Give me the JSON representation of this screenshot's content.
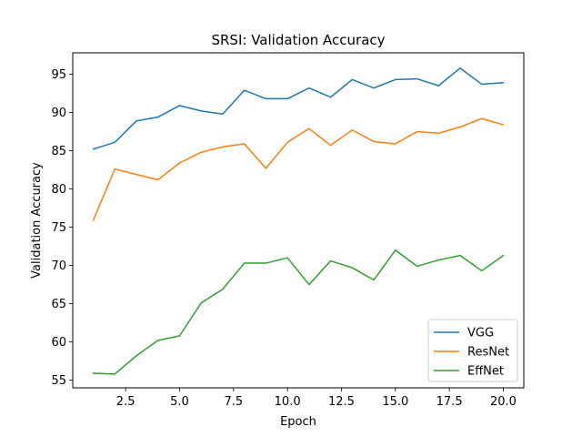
{
  "chart_data": {
    "type": "line",
    "title": "SRSI: Validation Accuracy",
    "xlabel": "Epoch",
    "ylabel": "Validation Accuracy",
    "xlim": [
      0.05,
      20.95
    ],
    "ylim": [
      54.0,
      97.8
    ],
    "xticks": [
      2.5,
      5.0,
      7.5,
      10.0,
      12.5,
      15.0,
      17.5,
      20.0
    ],
    "xtick_labels": [
      "2.5",
      "5.0",
      "7.5",
      "10.0",
      "12.5",
      "15.0",
      "17.5",
      "20.0"
    ],
    "yticks": [
      55,
      60,
      65,
      70,
      75,
      80,
      85,
      90,
      95
    ],
    "ytick_labels": [
      "55",
      "60",
      "65",
      "70",
      "75",
      "80",
      "85",
      "90",
      "95"
    ],
    "grid": false,
    "legend_position": "lower-right",
    "x": [
      1,
      2,
      3,
      4,
      5,
      6,
      7,
      8,
      9,
      10,
      11,
      12,
      13,
      14,
      15,
      16,
      17,
      18,
      19,
      20
    ],
    "series": [
      {
        "name": "VGG",
        "color": "#1f77b4",
        "values": [
          85.2,
          86.1,
          88.9,
          89.4,
          90.9,
          90.2,
          89.8,
          92.9,
          91.8,
          91.8,
          93.2,
          92.0,
          94.3,
          93.2,
          94.3,
          94.4,
          93.5,
          95.8,
          93.7,
          93.9
        ]
      },
      {
        "name": "ResNet",
        "color": "#ff7f0e",
        "values": [
          75.9,
          82.6,
          81.9,
          81.2,
          83.4,
          84.8,
          85.5,
          85.9,
          82.7,
          86.1,
          87.9,
          85.7,
          87.7,
          86.2,
          85.9,
          87.5,
          87.3,
          88.1,
          89.2,
          88.4
        ]
      },
      {
        "name": "EffNet",
        "color": "#2ca02c",
        "values": [
          55.9,
          55.8,
          58.2,
          60.2,
          60.8,
          65.1,
          66.9,
          70.3,
          70.3,
          71.0,
          67.5,
          70.6,
          69.7,
          68.1,
          72.0,
          69.9,
          70.7,
          71.3,
          69.3,
          71.3
        ]
      }
    ]
  }
}
